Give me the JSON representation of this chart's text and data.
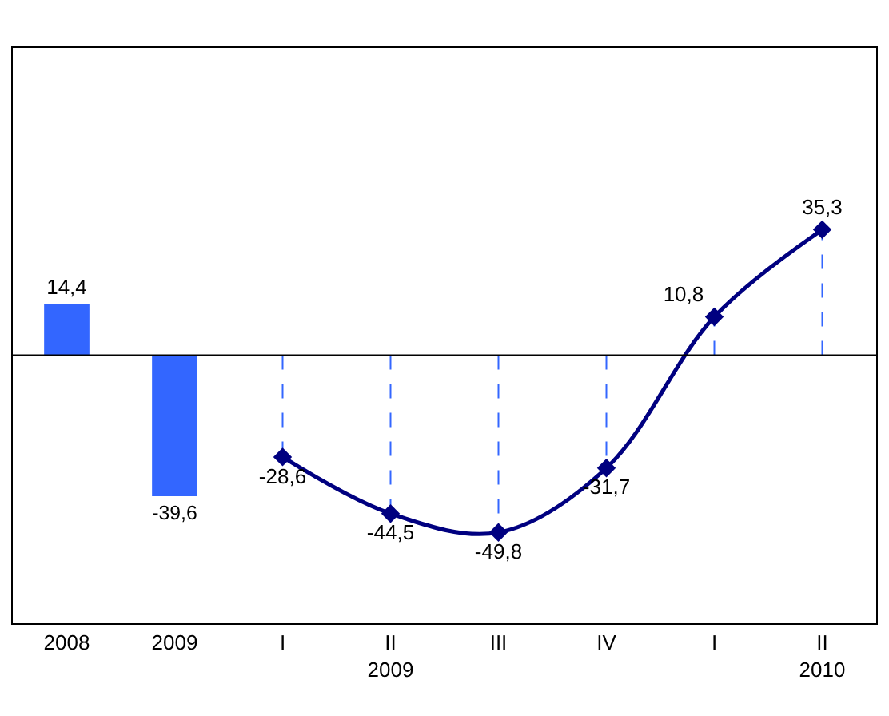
{
  "chart_data": {
    "type": "bar",
    "categories": [
      "2008",
      "2009",
      "I",
      "II\n2009",
      "III",
      "IV",
      "I",
      "II\n2010"
    ],
    "series": [
      {
        "color": "#3366ff",
        "values": [
          14.4,
          -39.6,
          null,
          null,
          null,
          null,
          null,
          null
        ],
        "value_labels": [
          "14,4",
          "-39,6",
          null,
          null,
          null,
          null,
          null,
          null
        ]
      },
      {
        "type": "line",
        "color": "#000080",
        "marker": "diamond",
        "line_style": "solid",
        "values": [
          null,
          null,
          -28.6,
          -44.5,
          -49.8,
          -31.7,
          10.8,
          35.3
        ],
        "value_labels": [
          null,
          null,
          "-28,6",
          "-44,5",
          "-49,8",
          "-31,7",
          "10,8",
          "35,3"
        ]
      }
    ],
    "grid": false,
    "legend": false
  }
}
